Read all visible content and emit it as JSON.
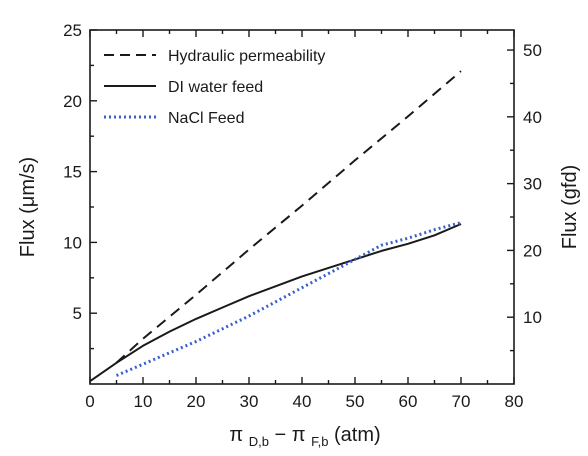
{
  "chart_data": {
    "type": "line",
    "x_axis": {
      "label_main": "π",
      "label_sub_1": "D,b",
      "label_mid": " − π",
      "label_sub_2": "F,b",
      "label_unit": " (atm)",
      "range": [
        0,
        80
      ],
      "ticks": [
        "0",
        "10",
        "20",
        "30",
        "40",
        "50",
        "60",
        "70",
        "80"
      ]
    },
    "y_axis_left": {
      "label": "Flux (μm/s)",
      "range": [
        0,
        25
      ],
      "ticks": [
        {
          "value": 5,
          "text": "5"
        },
        {
          "value": 10,
          "text": "10"
        },
        {
          "value": 15,
          "text": "15"
        },
        {
          "value": 20,
          "text": "20"
        },
        {
          "value": 25,
          "text": "25"
        }
      ]
    },
    "y_axis_right": {
      "label": "Flux (gfd)",
      "range": [
        0,
        53
      ],
      "ticks": [
        {
          "value": 10,
          "text": "10"
        },
        {
          "value": 20,
          "text": "20"
        },
        {
          "value": 30,
          "text": "30"
        },
        {
          "value": 40,
          "text": "40"
        },
        {
          "value": 50,
          "text": "50"
        }
      ]
    },
    "legend_position": "top-left",
    "grid": false,
    "series": [
      {
        "name": "Hydraulic permeability",
        "style": "dashed",
        "color": "#1a1a1a",
        "x": [
          5,
          10,
          20,
          30,
          40,
          50,
          60,
          70
        ],
        "y": [
          1.5,
          3.2,
          6.3,
          9.5,
          12.6,
          15.8,
          18.9,
          22.1
        ]
      },
      {
        "name": "DI water feed",
        "style": "solid",
        "color": "#1a1a1a",
        "x": [
          0,
          5,
          10,
          15,
          20,
          25,
          30,
          35,
          40,
          45,
          50,
          55,
          60,
          65,
          70
        ],
        "y": [
          0.2,
          1.5,
          2.7,
          3.7,
          4.6,
          5.4,
          6.2,
          6.9,
          7.6,
          8.2,
          8.8,
          9.4,
          9.9,
          10.5,
          11.3
        ]
      },
      {
        "name": "NaCl Feed",
        "style": "dotted",
        "color": "#3a5fcd",
        "x": [
          5,
          10,
          15,
          20,
          25,
          30,
          35,
          40,
          45,
          50,
          55,
          60,
          65,
          70
        ],
        "y": [
          0.6,
          1.4,
          2.2,
          3.0,
          3.9,
          4.8,
          5.8,
          6.8,
          7.8,
          8.8,
          9.8,
          10.3,
          10.9,
          11.4
        ]
      }
    ]
  }
}
